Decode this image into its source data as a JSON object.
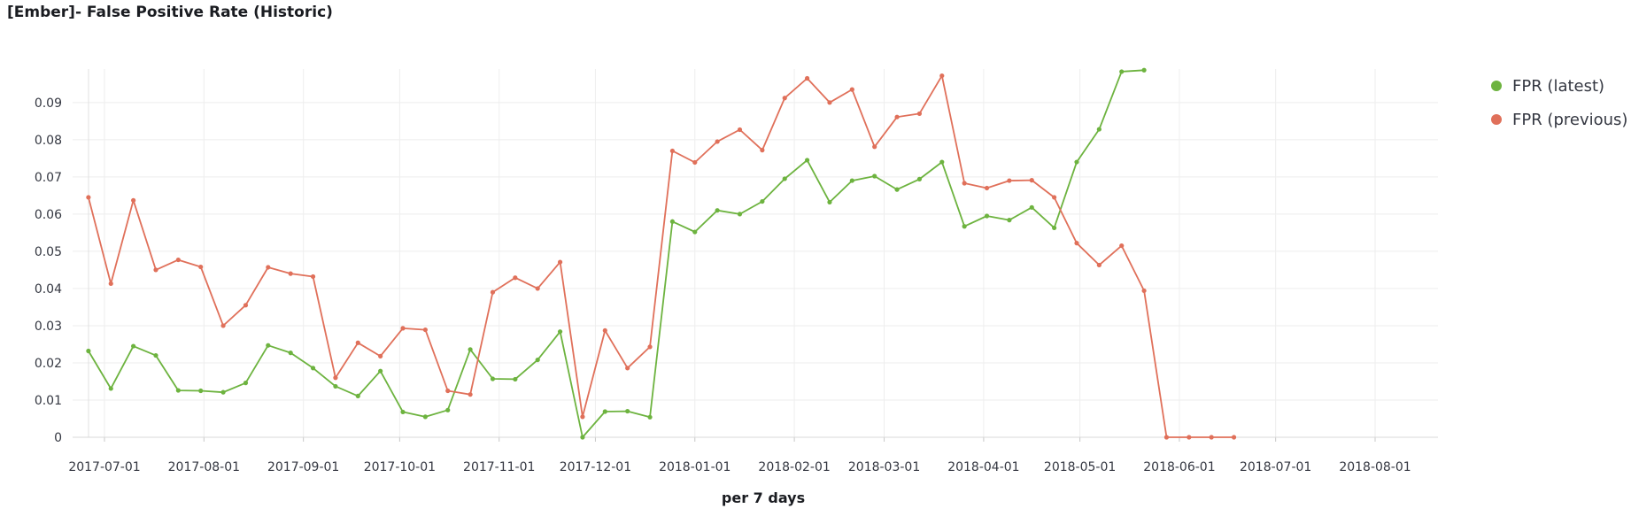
{
  "panel": {
    "title": "[Ember]- False Positive Rate (Historic)"
  },
  "legend": {
    "items": [
      {
        "label": "FPR (latest)",
        "color": "#6db33f"
      },
      {
        "label": "FPR (previous)",
        "color": "#e0705a"
      }
    ]
  },
  "chart_data": {
    "type": "line",
    "title": "[Ember]- False Positive Rate (Historic)",
    "xlabel": "per 7 days",
    "ylabel": "",
    "ylim": [
      0,
      0.099
    ],
    "grid": true,
    "legend_position": "right",
    "x_ticks": [
      "2017-07-01",
      "2017-08-01",
      "2017-09-01",
      "2017-10-01",
      "2017-11-01",
      "2017-12-01",
      "2018-01-01",
      "2018-02-01",
      "2018-03-01",
      "2018-04-01",
      "2018-05-01",
      "2018-06-01",
      "2018-07-01",
      "2018-08-01"
    ],
    "y_ticks": [
      "0",
      "0.01",
      "0.02",
      "0.03",
      "0.04",
      "0.05",
      "0.06",
      "0.07",
      "0.08",
      "0.09"
    ],
    "x": [
      "2017-06-26",
      "2017-07-03",
      "2017-07-10",
      "2017-07-17",
      "2017-07-24",
      "2017-07-31",
      "2017-08-07",
      "2017-08-14",
      "2017-08-21",
      "2017-08-28",
      "2017-09-04",
      "2017-09-11",
      "2017-09-18",
      "2017-09-25",
      "2017-10-02",
      "2017-10-09",
      "2017-10-16",
      "2017-10-23",
      "2017-10-30",
      "2017-11-06",
      "2017-11-13",
      "2017-11-20",
      "2017-11-27",
      "2017-12-04",
      "2017-12-11",
      "2017-12-18",
      "2017-12-25",
      "2018-01-01",
      "2018-01-08",
      "2018-01-15",
      "2018-01-22",
      "2018-01-29",
      "2018-02-05",
      "2018-02-12",
      "2018-02-19",
      "2018-02-26",
      "2018-03-05",
      "2018-03-12",
      "2018-03-19",
      "2018-03-26",
      "2018-04-02",
      "2018-04-09",
      "2018-04-16",
      "2018-04-23",
      "2018-04-30",
      "2018-05-07",
      "2018-05-14",
      "2018-05-21",
      "2018-05-28",
      "2018-06-04",
      "2018-06-11",
      "2018-06-18"
    ],
    "series": [
      {
        "name": "FPR (latest)",
        "color": "#6db33f",
        "values": [
          0.0232,
          0.0131,
          0.0245,
          0.022,
          0.0126,
          0.0125,
          0.0121,
          0.0146,
          0.0247,
          0.0227,
          0.0186,
          0.0137,
          0.0111,
          0.0178,
          0.0068,
          0.0055,
          0.0073,
          0.0236,
          0.0157,
          0.0156,
          0.0208,
          0.0284,
          0.0,
          0.0069,
          0.007,
          0.0054,
          0.058,
          0.0552,
          0.061,
          0.06,
          0.0634,
          0.0695,
          0.0745,
          0.0632,
          0.069,
          0.0702,
          0.0666,
          0.0694,
          0.074,
          0.0567,
          0.0595,
          0.0584,
          0.0618,
          0.0563,
          0.074,
          0.0828,
          0.0983,
          0.0987,
          null,
          null,
          null,
          null
        ]
      },
      {
        "name": "FPR (previous)",
        "color": "#e0705a",
        "values": [
          0.0645,
          0.0413,
          0.0637,
          0.045,
          0.0477,
          0.0458,
          0.03,
          0.0355,
          0.0457,
          0.044,
          0.0432,
          0.016,
          0.0254,
          0.0218,
          0.0293,
          0.0289,
          0.0125,
          0.0115,
          0.039,
          0.0429,
          0.04,
          0.0471,
          0.0055,
          0.0287,
          0.0186,
          0.0243,
          0.077,
          0.0739,
          0.0795,
          0.0827,
          0.0772,
          0.0912,
          0.0965,
          0.09,
          0.0935,
          0.0781,
          0.0861,
          0.087,
          0.0972,
          0.0683,
          0.067,
          0.069,
          0.0691,
          0.0645,
          0.0522,
          0.0463,
          0.0515,
          0.0394,
          0.0,
          0.0,
          0.0,
          0.0
        ]
      }
    ]
  }
}
